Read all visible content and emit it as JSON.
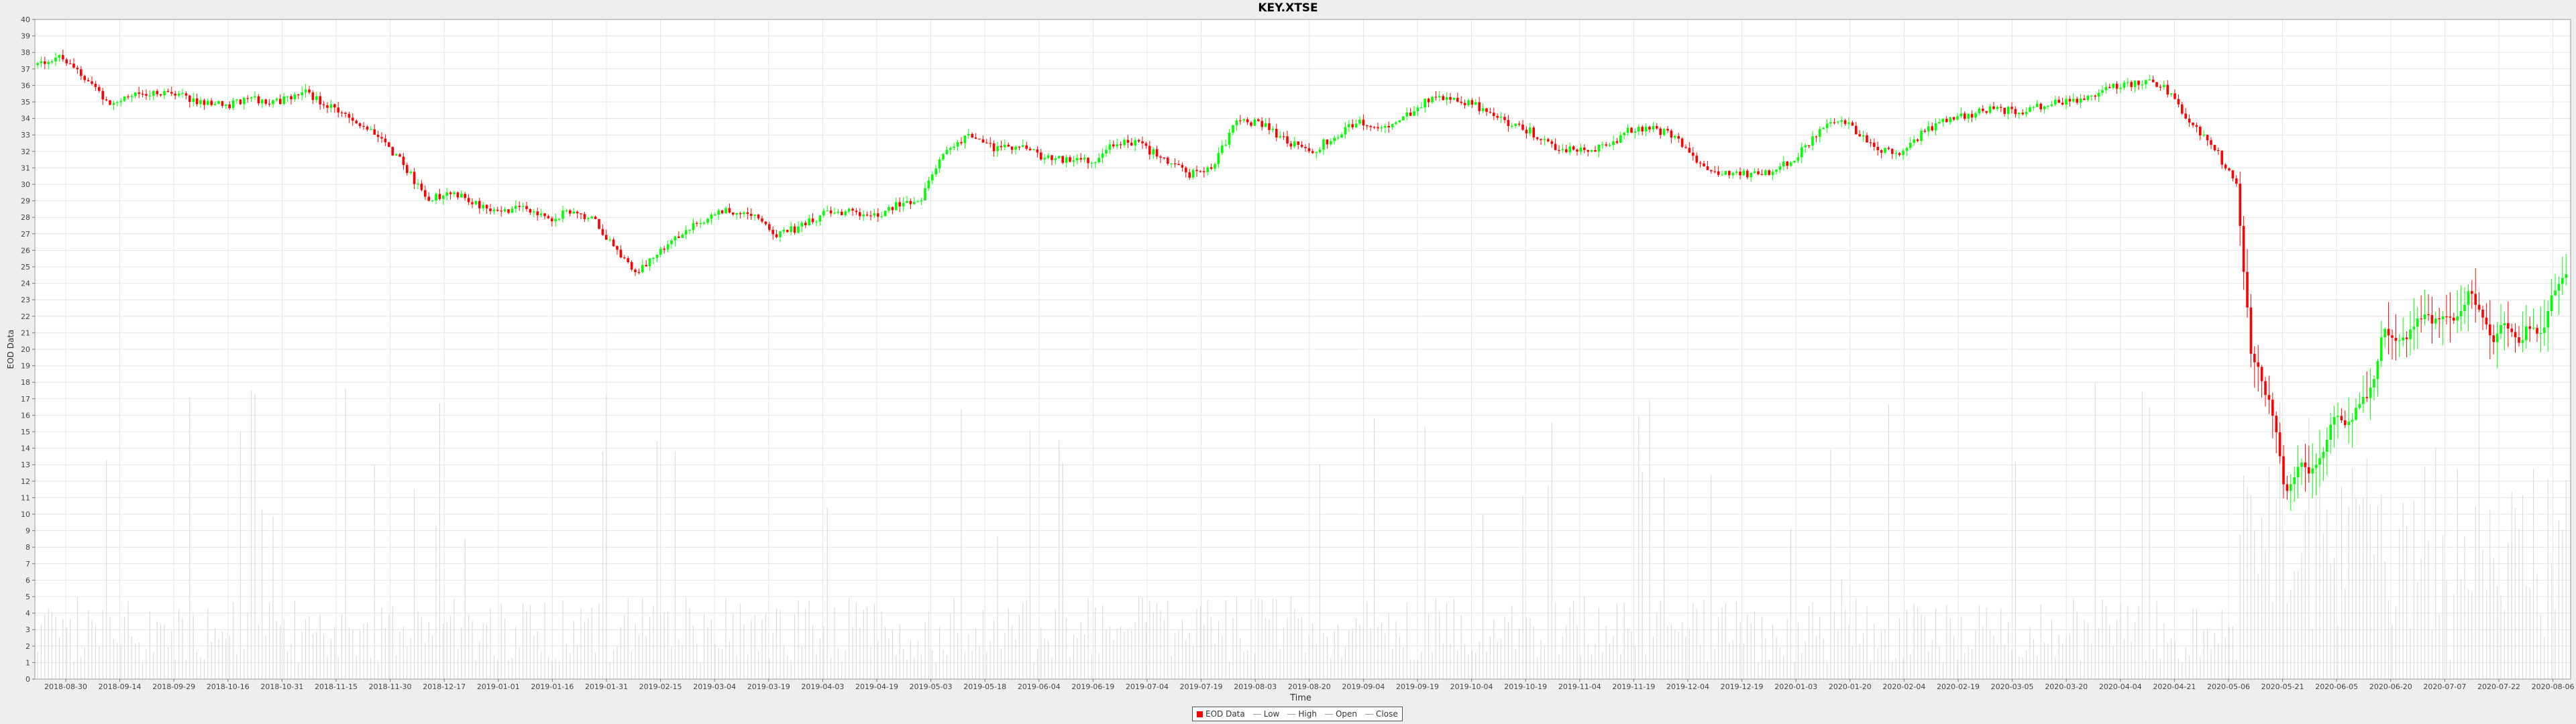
{
  "chart_data": {
    "type": "candlestick",
    "title": "KEY.XTSE",
    "xlabel": "Time",
    "ylabel": "EOD Data",
    "ylim": [
      0,
      40
    ],
    "y_ticks": [
      0,
      1,
      2,
      3,
      4,
      5,
      6,
      7,
      8,
      9,
      10,
      11,
      12,
      13,
      14,
      15,
      16,
      17,
      18,
      19,
      20,
      21,
      22,
      23,
      24,
      25,
      26,
      27,
      28,
      29,
      30,
      31,
      32,
      33,
      34,
      35,
      36,
      37,
      38,
      39,
      40
    ],
    "x_range": [
      "2018-09-17",
      "2020-09-15"
    ],
    "x_ticks": [
      "2018-08-30",
      "2018-09-14",
      "2018-09-29",
      "2018-10-16",
      "2018-10-31",
      "2018-11-15",
      "2018-11-30",
      "2018-12-17",
      "2019-01-01",
      "2019-01-16",
      "2019-01-31",
      "2019-02-15",
      "2019-03-04",
      "2019-03-19",
      "2019-04-03",
      "2019-04-19",
      "2019-05-03",
      "2019-05-18",
      "2019-06-04",
      "2019-06-19",
      "2019-07-04",
      "2019-07-19",
      "2019-08-03",
      "2019-08-20",
      "2019-09-04",
      "2019-09-19",
      "2019-10-04",
      "2019-10-19",
      "2019-11-04",
      "2019-11-19",
      "2019-12-04",
      "2019-12-19",
      "2020-01-03",
      "2020-01-20",
      "2020-02-04",
      "2020-02-19",
      "2020-03-05",
      "2020-03-20",
      "2020-04-04",
      "2020-04-21",
      "2020-05-06",
      "2020-05-21",
      "2020-06-05",
      "2020-06-20",
      "2020-07-07",
      "2020-07-22",
      "2020-08-06"
    ],
    "grid": true,
    "legend_position": "bottom-center",
    "colors": {
      "up": "#00ff00",
      "down": "#ff0000",
      "volume": "#d6d6d6",
      "grid": "#e4e4e4"
    },
    "series_labels": [
      "EOD Data",
      "Low",
      "High",
      "Open",
      "Close"
    ],
    "close_path": [
      [
        "2018-09-17",
        37.2
      ],
      [
        "2018-09-24",
        37.8
      ],
      [
        "2018-10-01",
        36.6
      ],
      [
        "2018-10-08",
        35.0
      ],
      [
        "2018-10-15",
        35.3
      ],
      [
        "2018-10-22",
        35.6
      ],
      [
        "2018-10-29",
        35.3
      ],
      [
        "2018-11-05",
        35.0
      ],
      [
        "2018-11-12",
        34.8
      ],
      [
        "2018-11-19",
        35.2
      ],
      [
        "2018-11-26",
        35.0
      ],
      [
        "2018-12-03",
        35.6
      ],
      [
        "2018-12-10",
        34.8
      ],
      [
        "2018-12-17",
        33.8
      ],
      [
        "2018-12-24",
        33.2
      ],
      [
        "2019-01-01",
        31.2
      ],
      [
        "2019-01-07",
        29.2
      ],
      [
        "2019-01-14",
        29.4
      ],
      [
        "2019-01-21",
        29.0
      ],
      [
        "2019-01-28",
        28.2
      ],
      [
        "2019-02-04",
        28.8
      ],
      [
        "2019-02-11",
        27.8
      ],
      [
        "2019-02-18",
        28.4
      ],
      [
        "2019-02-25",
        27.8
      ],
      [
        "2019-03-04",
        25.8
      ],
      [
        "2019-03-08",
        24.6
      ],
      [
        "2019-03-14",
        25.6
      ],
      [
        "2019-03-21",
        26.8
      ],
      [
        "2019-03-28",
        27.8
      ],
      [
        "2019-04-04",
        28.4
      ],
      [
        "2019-04-11",
        28.2
      ],
      [
        "2019-04-18",
        27.0
      ],
      [
        "2019-04-25",
        27.4
      ],
      [
        "2019-05-02",
        28.2
      ],
      [
        "2019-05-09",
        28.4
      ],
      [
        "2019-05-16",
        28.0
      ],
      [
        "2019-05-23",
        28.8
      ],
      [
        "2019-05-30",
        29.2
      ],
      [
        "2019-06-06",
        32.2
      ],
      [
        "2019-06-13",
        33.0
      ],
      [
        "2019-06-20",
        32.2
      ],
      [
        "2019-06-27",
        32.4
      ],
      [
        "2019-07-04",
        31.6
      ],
      [
        "2019-07-11",
        31.4
      ],
      [
        "2019-07-18",
        31.4
      ],
      [
        "2019-07-25",
        32.6
      ],
      [
        "2019-08-01",
        32.4
      ],
      [
        "2019-08-08",
        31.4
      ],
      [
        "2019-08-15",
        30.6
      ],
      [
        "2019-08-22",
        31.2
      ],
      [
        "2019-08-29",
        34.0
      ],
      [
        "2019-09-05",
        33.6
      ],
      [
        "2019-09-12",
        32.6
      ],
      [
        "2019-09-19",
        32.0
      ],
      [
        "2019-09-26",
        33.0
      ],
      [
        "2019-10-03",
        33.8
      ],
      [
        "2019-10-10",
        33.4
      ],
      [
        "2019-10-17",
        34.2
      ],
      [
        "2019-10-24",
        35.4
      ],
      [
        "2019-10-31",
        35.2
      ],
      [
        "2019-11-07",
        34.6
      ],
      [
        "2019-11-14",
        33.8
      ],
      [
        "2019-11-21",
        33.2
      ],
      [
        "2019-11-28",
        32.2
      ],
      [
        "2019-12-05",
        32.0
      ],
      [
        "2019-12-12",
        32.2
      ],
      [
        "2019-12-19",
        33.2
      ],
      [
        "2019-12-26",
        33.4
      ],
      [
        "2020-01-02",
        32.8
      ],
      [
        "2020-01-09",
        31.2
      ],
      [
        "2020-01-16",
        30.6
      ],
      [
        "2020-01-23",
        30.6
      ],
      [
        "2020-01-30",
        30.8
      ],
      [
        "2020-02-06",
        31.8
      ],
      [
        "2020-02-13",
        33.6
      ],
      [
        "2020-02-20",
        33.8
      ],
      [
        "2020-02-27",
        32.4
      ],
      [
        "2020-03-05",
        31.8
      ],
      [
        "2020-03-12",
        33.0
      ],
      [
        "2020-03-19",
        33.8
      ],
      [
        "2020-03-26",
        34.2
      ],
      [
        "2020-04-02",
        34.6
      ],
      [
        "2020-04-09",
        34.4
      ],
      [
        "2020-04-16",
        34.8
      ],
      [
        "2020-04-23",
        35.0
      ],
      [
        "2020-04-30",
        35.4
      ],
      [
        "2020-05-07",
        36.0
      ],
      [
        "2020-05-14",
        36.2
      ],
      [
        "2020-05-21",
        36.0
      ],
      [
        "2020-05-28",
        34.0
      ],
      [
        "2020-06-04",
        32.4
      ],
      [
        "2020-06-08",
        31.0
      ],
      [
        "2020-06-11",
        29.8
      ],
      [
        "2020-06-15",
        20.0
      ],
      [
        "2020-06-18",
        18.2
      ],
      [
        "2020-06-22",
        15.6
      ],
      [
        "2020-06-25",
        11.0
      ],
      [
        "2020-06-29",
        13.0
      ],
      [
        "2020-07-02",
        12.6
      ],
      [
        "2020-07-06",
        14.0
      ],
      [
        "2020-07-09",
        16.0
      ],
      [
        "2020-07-13",
        15.4
      ],
      [
        "2020-07-16",
        16.6
      ],
      [
        "2020-07-20",
        17.6
      ],
      [
        "2020-07-23",
        21.2
      ],
      [
        "2020-07-27",
        20.4
      ],
      [
        "2020-07-30",
        20.8
      ],
      [
        "2020-08-03",
        22.0
      ],
      [
        "2020-08-06",
        21.8
      ],
      [
        "2020-08-10",
        22.0
      ],
      [
        "2020-08-13",
        21.6
      ],
      [
        "2020-08-17",
        23.6
      ],
      [
        "2020-08-20",
        22.0
      ],
      [
        "2020-08-24",
        20.6
      ],
      [
        "2020-08-27",
        21.8
      ],
      [
        "2020-08-31",
        20.4
      ],
      [
        "2020-09-03",
        21.4
      ],
      [
        "2020-09-07",
        21.0
      ],
      [
        "2020-09-10",
        23.6
      ],
      [
        "2020-09-15",
        25.0
      ]
    ]
  },
  "legend": {
    "eod_label": "EOD Data",
    "low_label": "Low",
    "high_label": "High",
    "open_label": "Open",
    "close_label": "Close"
  }
}
